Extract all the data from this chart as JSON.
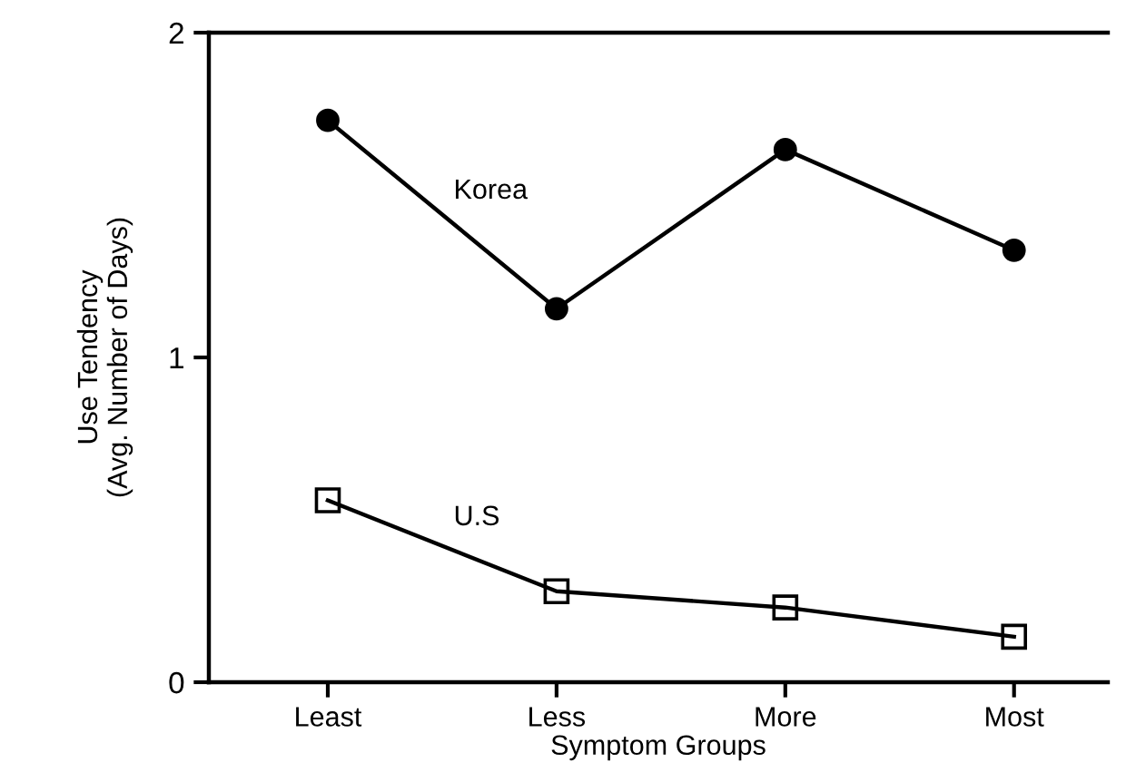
{
  "chart_data": {
    "type": "line",
    "xlabel": "Symptom Groups",
    "ylabel": "Use Tendency\n(Avg. Number of Days)",
    "categories": [
      "Least",
      "Less",
      "More",
      "Most"
    ],
    "series": [
      {
        "name": "Korea",
        "color": "#000000",
        "marker": "circle",
        "values": [
          1.73,
          1.15,
          1.64,
          1.33
        ]
      },
      {
        "name": "U.S",
        "color": "#000000",
        "marker": "square",
        "values": [
          0.56,
          0.28,
          0.23,
          0.14
        ]
      }
    ],
    "ylim": [
      0,
      2
    ],
    "yticks": [
      0,
      1,
      2
    ],
    "grid": false,
    "legend": false
  }
}
